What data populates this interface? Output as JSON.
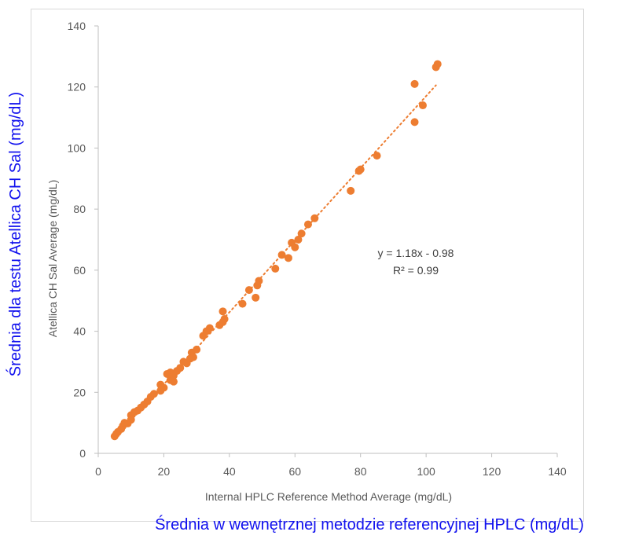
{
  "chart_data": {
    "type": "scatter",
    "xlabel": "Internal HPLC Reference Method Average (mg/dL)",
    "ylabel": "Atellica CH Sal  Average (mg/dL)",
    "xlim": [
      0,
      140
    ],
    "ylim": [
      0,
      140
    ],
    "x_ticks": [
      "0",
      "20",
      "40",
      "60",
      "80",
      "100",
      "120",
      "140"
    ],
    "y_ticks": [
      "0",
      "20",
      "40",
      "60",
      "80",
      "100",
      "120",
      "140"
    ],
    "grid": false,
    "marker_color": "#ed7d31",
    "trendline": {
      "slope": 1.18,
      "intercept": -0.98,
      "x_range": [
        5,
        103
      ],
      "style": "dotted",
      "equation_text": "y = 1.18x - 0.98",
      "r2_text": "R² = 0.99"
    },
    "points": [
      [
        5,
        5.6
      ],
      [
        5.5,
        6.4
      ],
      [
        6,
        7
      ],
      [
        7,
        8
      ],
      [
        7.5,
        9
      ],
      [
        8,
        10
      ],
      [
        9,
        9.8
      ],
      [
        10,
        11
      ],
      [
        10,
        12.5
      ],
      [
        11,
        13.5
      ],
      [
        12,
        14
      ],
      [
        13,
        15
      ],
      [
        14,
        16
      ],
      [
        15,
        17
      ],
      [
        16,
        18.5
      ],
      [
        17,
        19.5
      ],
      [
        19,
        20.5
      ],
      [
        19,
        22.5
      ],
      [
        20,
        21.5
      ],
      [
        21,
        26
      ],
      [
        22,
        26.5
      ],
      [
        22,
        24
      ],
      [
        23,
        23.5
      ],
      [
        23,
        25.5
      ],
      [
        24,
        27
      ],
      [
        25,
        28
      ],
      [
        26,
        30
      ],
      [
        27,
        29.5
      ],
      [
        28,
        31
      ],
      [
        28.5,
        33
      ],
      [
        29,
        31.5
      ],
      [
        30,
        34
      ],
      [
        32,
        38.5
      ],
      [
        33,
        40
      ],
      [
        34,
        41
      ],
      [
        37,
        42
      ],
      [
        38,
        43
      ],
      [
        38,
        46.5
      ],
      [
        38.5,
        44
      ],
      [
        44,
        49
      ],
      [
        46,
        53.5
      ],
      [
        48,
        51
      ],
      [
        48.5,
        55
      ],
      [
        49,
        56.5
      ],
      [
        54,
        60.5
      ],
      [
        56,
        65
      ],
      [
        58,
        64
      ],
      [
        59,
        69
      ],
      [
        60,
        67.5
      ],
      [
        61,
        70
      ],
      [
        62,
        72
      ],
      [
        64,
        75
      ],
      [
        66,
        77
      ],
      [
        77,
        86
      ],
      [
        79.5,
        92.5
      ],
      [
        80,
        93
      ],
      [
        85,
        97.5
      ],
      [
        96.5,
        108.5
      ],
      [
        96.5,
        121
      ],
      [
        99,
        114
      ],
      [
        103,
        126.5
      ],
      [
        103.5,
        127.5
      ]
    ]
  },
  "overlay": {
    "y_label": "Średnia dla testu Atellica CH Sal (mg/dL)",
    "x_label": "Średnia w wewnętrznej metodzie referencyjnej HPLC (mg/dL)",
    "color": "#1010ee"
  }
}
